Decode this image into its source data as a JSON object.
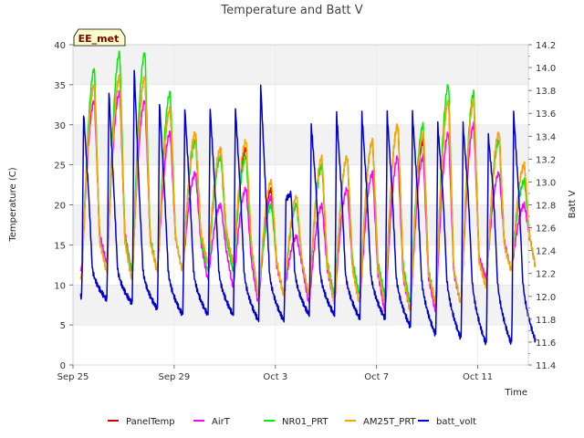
{
  "chart_data": {
    "type": "line",
    "title": "Temperature and Batt V",
    "xlabel": "Time",
    "ylabel": "Temperature (C)",
    "y2label": "Batt V",
    "badge": "EE_met",
    "xlim": [
      0,
      18
    ],
    "ylim": [
      0,
      40
    ],
    "y2lim": [
      11.4,
      14.2
    ],
    "x_ticks": [
      {
        "x": 0,
        "label": "Sep 25"
      },
      {
        "x": 4,
        "label": "Sep 29"
      },
      {
        "x": 8,
        "label": "Oct 3"
      },
      {
        "x": 12,
        "label": "Oct 7"
      },
      {
        "x": 16,
        "label": "Oct 11"
      }
    ],
    "y_ticks": [
      0,
      5,
      10,
      15,
      20,
      25,
      30,
      35,
      40
    ],
    "y2_ticks": [
      "11.4",
      "11.6",
      "11.8",
      "12.0",
      "12.2",
      "12.4",
      "12.6",
      "12.8",
      "13.0",
      "13.2",
      "13.4",
      "13.6",
      "13.8",
      "14.0",
      "14.2"
    ],
    "background_bands": true,
    "legend_position": "bottom",
    "daily": {
      "day_start": 0.3,
      "PanelTemp": {
        "max": [
          35,
          36,
          36,
          32,
          29,
          27,
          27,
          22,
          20,
          25,
          26,
          28,
          30,
          28,
          33,
          33,
          29,
          25
        ],
        "min": [
          11,
          12,
          11,
          12,
          12,
          13,
          13,
          9,
          9,
          9,
          8,
          8,
          8,
          7,
          8,
          8,
          10,
          12
        ]
      },
      "AirT": {
        "max": [
          33,
          34,
          33,
          29,
          24,
          20,
          22,
          21,
          16,
          20,
          22,
          24,
          26,
          26,
          29,
          30,
          24,
          20
        ],
        "min": [
          12,
          13,
          12,
          12,
          12,
          11,
          10,
          8,
          9,
          8,
          8,
          8,
          7,
          7,
          7,
          8,
          11,
          12
        ]
      },
      "NR01_PRT": {
        "max": [
          37,
          39,
          39,
          34,
          28,
          26,
          26,
          20,
          20,
          25,
          26,
          28,
          30,
          30,
          35,
          34,
          28,
          23
        ],
        "min": [
          11,
          12,
          12,
          12,
          12,
          12,
          12,
          9,
          9,
          9,
          9,
          9,
          9,
          8,
          8,
          8,
          10,
          12
        ]
      },
      "AM25T_PRT": {
        "max": [
          35,
          36,
          36,
          32,
          29,
          27,
          28,
          23,
          21,
          26,
          26,
          28,
          30,
          29,
          33,
          33,
          29,
          25
        ],
        "min": [
          11,
          12,
          11,
          12,
          12,
          13,
          13,
          9,
          9,
          9,
          8,
          8,
          8,
          7,
          8,
          8,
          10,
          12
        ]
      },
      "batt_volt": {
        "max": [
          13.6,
          13.8,
          14.0,
          13.7,
          13.65,
          13.65,
          13.65,
          13.85,
          12.85,
          13.5,
          13.6,
          13.6,
          13.6,
          13.6,
          13.5,
          13.5,
          13.4,
          13.6
        ],
        "min": [
          12.0,
          11.98,
          11.95,
          11.9,
          11.85,
          11.85,
          11.85,
          11.8,
          11.8,
          11.85,
          11.85,
          11.82,
          11.82,
          11.75,
          11.68,
          11.65,
          11.6,
          11.6
        ]
      }
    },
    "series": [
      {
        "name": "PanelTemp",
        "color": "#cc0000",
        "axis": "left"
      },
      {
        "name": "AirT",
        "color": "#ff00ff",
        "axis": "left"
      },
      {
        "name": "NR01_PRT",
        "color": "#00ee00",
        "axis": "left"
      },
      {
        "name": "AM25T_PRT",
        "color": "#ffa500",
        "axis": "left"
      },
      {
        "name": "batt_volt",
        "color": "#0000cc",
        "axis": "right"
      }
    ]
  }
}
